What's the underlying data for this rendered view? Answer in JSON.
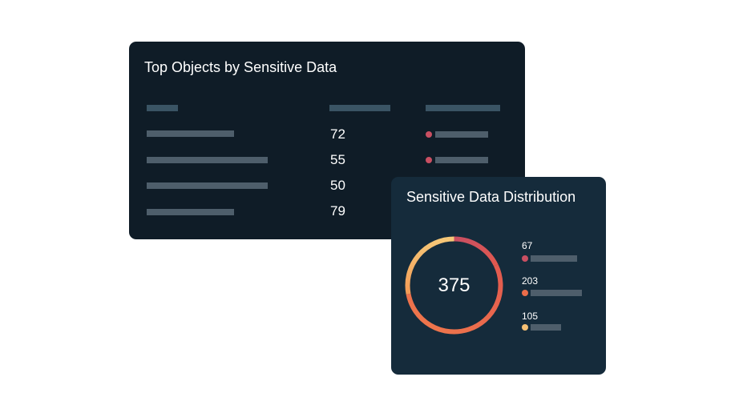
{
  "top_objects": {
    "title": "Top Objects by Sensitive Data",
    "rows": [
      {
        "count": "72"
      },
      {
        "count": "55"
      },
      {
        "count": "50"
      },
      {
        "count": "79"
      }
    ],
    "colors": {
      "dot": "#c94f62"
    }
  },
  "distribution": {
    "title": "Sensitive Data Distribution",
    "total": "375",
    "legend": [
      {
        "value": "67",
        "color": "#c94f62"
      },
      {
        "value": "203",
        "color": "#ec6d4a"
      },
      {
        "value": "105",
        "color": "#f5c074"
      }
    ]
  }
}
